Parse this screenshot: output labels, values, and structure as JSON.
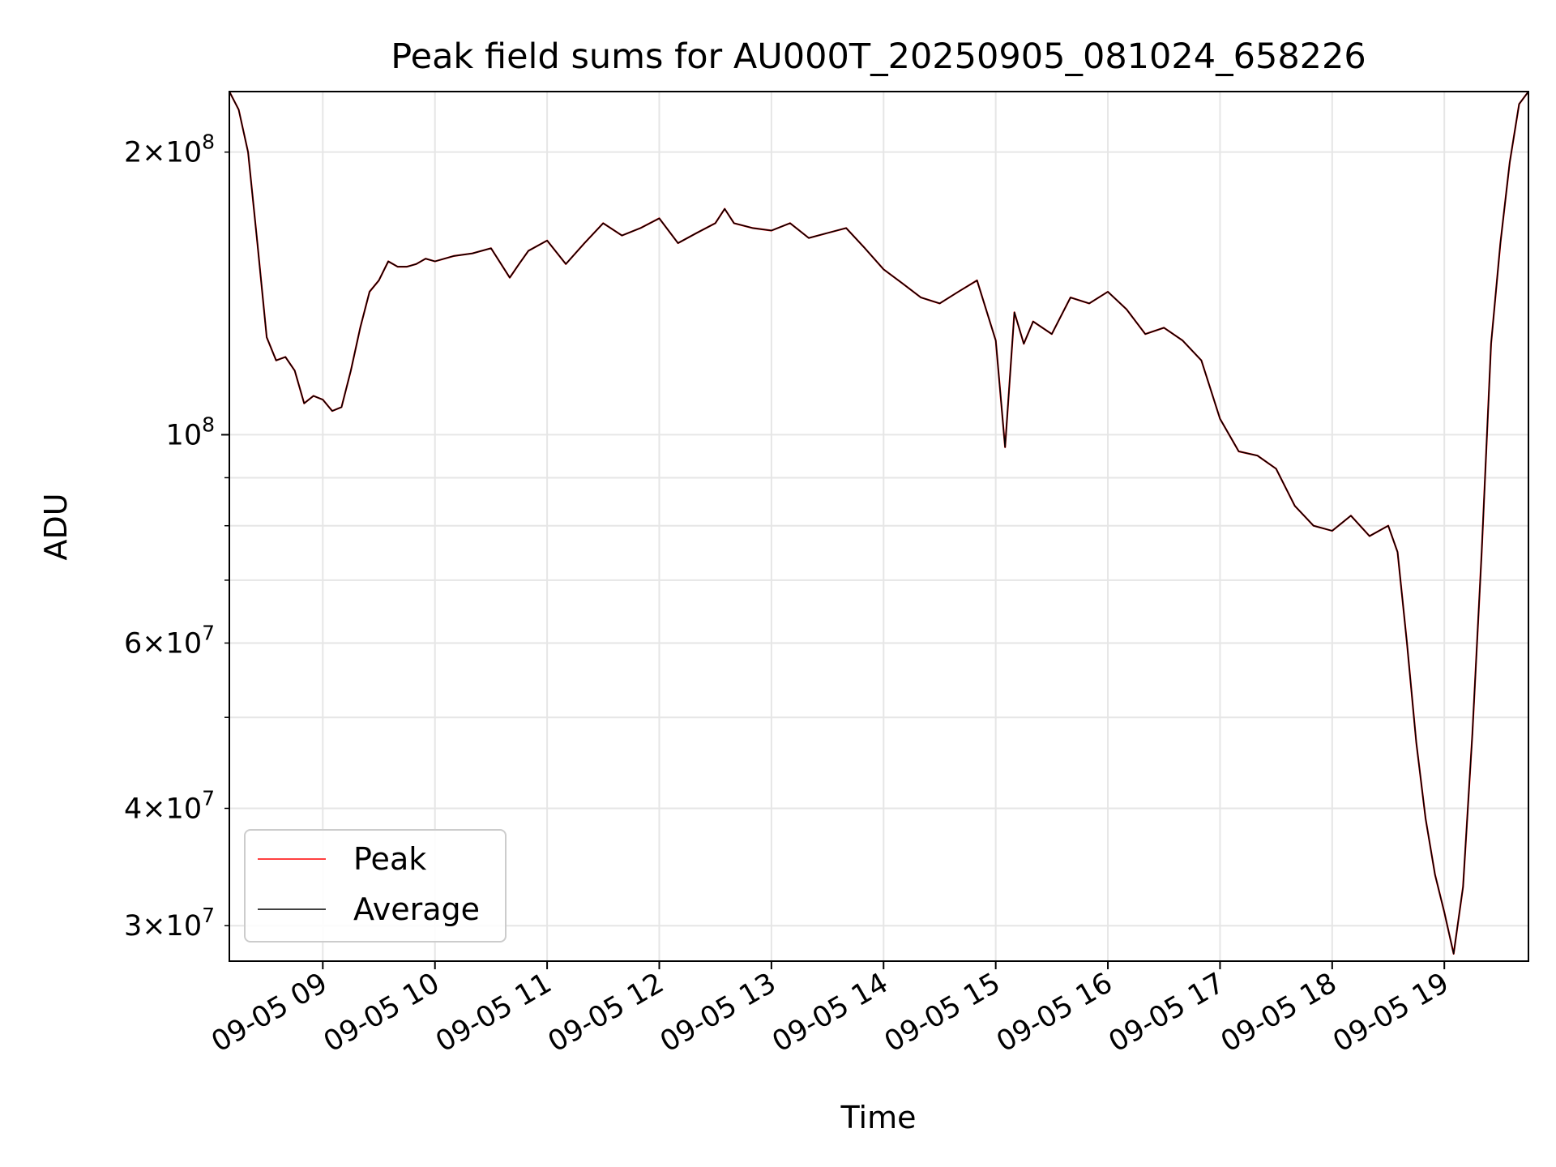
{
  "chart_data": {
    "type": "line",
    "title": "Peak field sums for AU000T_20250905_081024_658226",
    "xlabel": "Time",
    "ylabel": "ADU",
    "yscale": "log",
    "ylim": [
      27500000,
      232000000
    ],
    "xlim": [
      "09-05 08:10",
      "09-05 19:45"
    ],
    "grid": true,
    "legend_position": "lower-left",
    "x_ticks": [
      "09-05 09",
      "09-05 10",
      "09-05 11",
      "09-05 12",
      "09-05 13",
      "09-05 14",
      "09-05 15",
      "09-05 16",
      "09-05 17",
      "09-05 18",
      "09-05 19"
    ],
    "y_ticks": [
      {
        "value": 200000000,
        "mant": "2",
        "exp": "8"
      },
      {
        "value": 100000000,
        "mant": "",
        "exp": "8"
      },
      {
        "value": 60000000,
        "mant": "6",
        "exp": "7"
      },
      {
        "value": 40000000,
        "mant": "4",
        "exp": "7"
      },
      {
        "value": 30000000,
        "mant": "3",
        "exp": "7"
      }
    ],
    "x": [
      "08:10",
      "08:15",
      "08:20",
      "08:25",
      "08:30",
      "08:35",
      "08:40",
      "08:45",
      "08:50",
      "08:55",
      "09:00",
      "09:05",
      "09:10",
      "09:15",
      "09:20",
      "09:25",
      "09:30",
      "09:35",
      "09:40",
      "09:45",
      "09:50",
      "09:55",
      "10:00",
      "10:10",
      "10:20",
      "10:30",
      "10:40",
      "10:45",
      "10:50",
      "11:00",
      "11:10",
      "11:20",
      "11:30",
      "11:40",
      "11:50",
      "12:00",
      "12:10",
      "12:20",
      "12:30",
      "12:35",
      "12:40",
      "12:50",
      "13:00",
      "13:10",
      "13:20",
      "13:30",
      "13:40",
      "13:50",
      "14:00",
      "14:10",
      "14:20",
      "14:30",
      "14:40",
      "14:50",
      "15:00",
      "15:05",
      "15:10",
      "15:15",
      "15:20",
      "15:30",
      "15:40",
      "15:50",
      "16:00",
      "16:10",
      "16:20",
      "16:30",
      "16:40",
      "16:50",
      "17:00",
      "17:10",
      "17:20",
      "17:30",
      "17:40",
      "17:50",
      "18:00",
      "18:10",
      "18:20",
      "18:30",
      "18:35",
      "18:40",
      "18:45",
      "18:50",
      "18:55",
      "19:00",
      "19:05",
      "19:10",
      "19:15",
      "19:20",
      "19:25",
      "19:30",
      "19:35",
      "19:40",
      "19:45"
    ],
    "series": [
      {
        "name": "Peak",
        "color": "#ff0000",
        "values": [
          232000000,
          222000000,
          200000000,
          160000000,
          127000000,
          120000000,
          121000000,
          117000000,
          108000000,
          110000000,
          109000000,
          106000000,
          107000000,
          117000000,
          130000000,
          142000000,
          146000000,
          153000000,
          151000000,
          151000000,
          152000000,
          154000000,
          153000000,
          155000000,
          156000000,
          158000000,
          147000000,
          152000000,
          157000000,
          161000000,
          152000000,
          160000000,
          168000000,
          163000000,
          166000000,
          170000000,
          160000000,
          164000000,
          168000000,
          174000000,
          168000000,
          166000000,
          165000000,
          168000000,
          162000000,
          164000000,
          166000000,
          158000000,
          150000000,
          145000000,
          140000000,
          138000000,
          142000000,
          146000000,
          126000000,
          97000000,
          135000000,
          125000000,
          132000000,
          128000000,
          140000000,
          138000000,
          142000000,
          136000000,
          128000000,
          130000000,
          126000000,
          120000000,
          104000000,
          96000000,
          95000000,
          92000000,
          84000000,
          80000000,
          79000000,
          82000000,
          78000000,
          80000000,
          75000000,
          60000000,
          47000000,
          39000000,
          34000000,
          31000000,
          28000000,
          33000000,
          48000000,
          75000000,
          125000000,
          160000000,
          195000000,
          225000000,
          232000000
        ]
      },
      {
        "name": "Average",
        "color": "#000000",
        "values": [
          232000000,
          222000000,
          200000000,
          160000000,
          127000000,
          120000000,
          121000000,
          117000000,
          108000000,
          110000000,
          109000000,
          106000000,
          107000000,
          117000000,
          130000000,
          142000000,
          146000000,
          153000000,
          151000000,
          151000000,
          152000000,
          154000000,
          153000000,
          155000000,
          156000000,
          158000000,
          147000000,
          152000000,
          157000000,
          161000000,
          152000000,
          160000000,
          168000000,
          163000000,
          166000000,
          170000000,
          160000000,
          164000000,
          168000000,
          174000000,
          168000000,
          166000000,
          165000000,
          168000000,
          162000000,
          164000000,
          166000000,
          158000000,
          150000000,
          145000000,
          140000000,
          138000000,
          142000000,
          146000000,
          126000000,
          97000000,
          135000000,
          125000000,
          132000000,
          128000000,
          140000000,
          138000000,
          142000000,
          136000000,
          128000000,
          130000000,
          126000000,
          120000000,
          104000000,
          96000000,
          95000000,
          92000000,
          84000000,
          80000000,
          79000000,
          82000000,
          78000000,
          80000000,
          75000000,
          60000000,
          47000000,
          39000000,
          34000000,
          31000000,
          28000000,
          33000000,
          48000000,
          75000000,
          125000000,
          160000000,
          195000000,
          225000000,
          232000000
        ]
      }
    ]
  }
}
